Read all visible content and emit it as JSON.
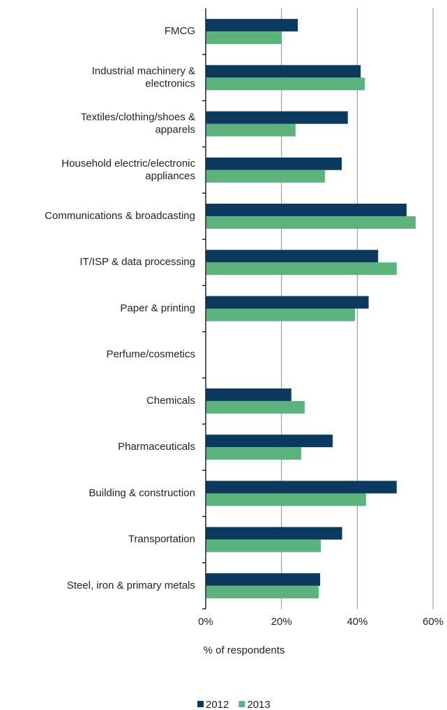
{
  "chart_data": {
    "type": "barh",
    "categories": [
      "FMCG",
      "Industrial machinery & electronics",
      "Textiles/clothing/shoes & apparels",
      "Household electric/electronic appliances",
      "Communications & broadcasting",
      "IT/ISP & data processing",
      "Paper & printing",
      "Perfume/cosmetics",
      "Chemicals",
      "Pharmaceuticals",
      "Building & construction",
      "Transportation",
      "Steel, iron & primary metals"
    ],
    "series": [
      {
        "name": "2012",
        "color": "#0b3a5e",
        "values": [
          24.3,
          40.9,
          37.5,
          35.9,
          53,
          45.5,
          43,
          null,
          22.6,
          33.5,
          50.4,
          36,
          30.2
        ]
      },
      {
        "name": "2013",
        "color": "#5db37e",
        "values": [
          20,
          42,
          23.7,
          31.5,
          55.4,
          50.4,
          39.4,
          null,
          26.1,
          25.2,
          42.3,
          30.4,
          29.8
        ]
      }
    ],
    "xlim": [
      0,
      60
    ],
    "xticks": [
      {
        "value": 0,
        "label": "0%"
      },
      {
        "value": 20,
        "label": "20%"
      },
      {
        "value": 40,
        "label": "40%"
      },
      {
        "value": 60,
        "label": "60%"
      }
    ],
    "xlabel": "% of respondents",
    "grid": true,
    "legend": "bottom"
  }
}
